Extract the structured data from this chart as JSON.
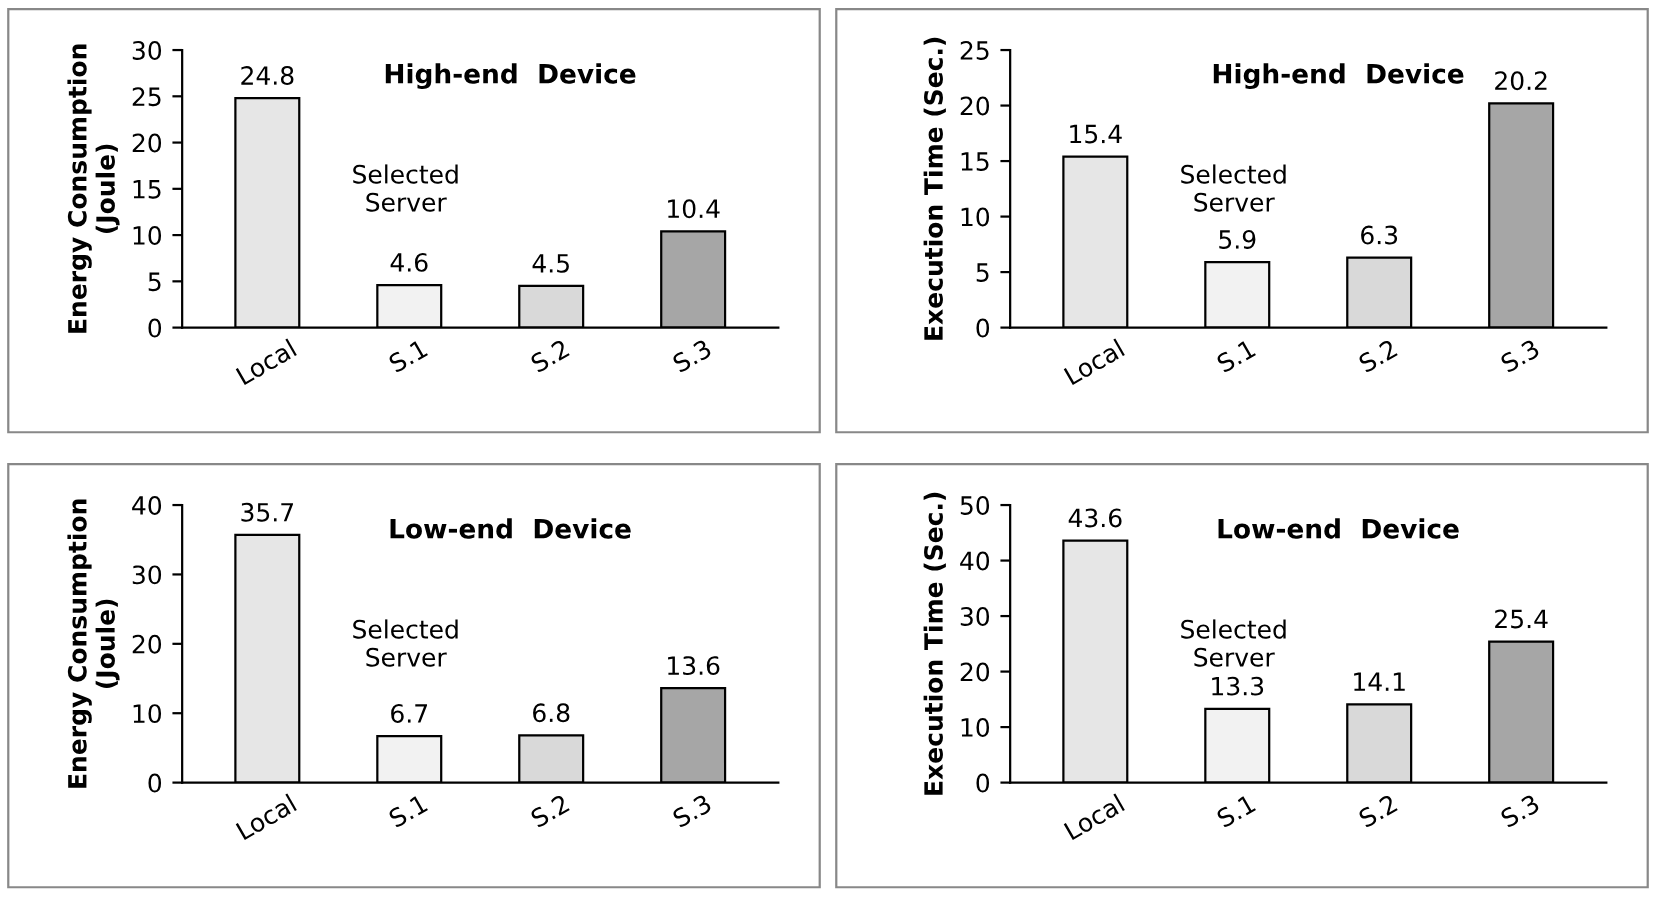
{
  "chart_data": [
    {
      "type": "bar",
      "title": "High-end  Device",
      "ylabel": "Energy Consumption\n(Joule)",
      "categories": [
        "Local",
        "S.1",
        "S.2",
        "S.3"
      ],
      "values": [
        24.8,
        4.6,
        4.5,
        10.4
      ],
      "colors": [
        "#e6e6e6",
        "#f2f2f2",
        "#d9d9d9",
        "#a6a6a6"
      ],
      "ylim": [
        0,
        30
      ],
      "yticks": [
        0,
        5,
        10,
        15,
        20,
        25,
        30
      ],
      "data_labels": true,
      "grid": false,
      "annotations": [
        "Selected\nServer"
      ]
    },
    {
      "type": "bar",
      "title": "High-end  Device",
      "ylabel": "Execution Time (Sec.)",
      "categories": [
        "Local",
        "S.1",
        "S.2",
        "S.3"
      ],
      "values": [
        15.4,
        5.9,
        6.3,
        20.2
      ],
      "colors": [
        "#e6e6e6",
        "#f2f2f2",
        "#d9d9d9",
        "#a6a6a6"
      ],
      "ylim": [
        0,
        25
      ],
      "yticks": [
        0,
        5,
        10,
        15,
        20,
        25
      ],
      "data_labels": true,
      "grid": false,
      "annotations": [
        "Selected\nServer"
      ]
    },
    {
      "type": "bar",
      "title": "Low-end  Device",
      "ylabel": "Energy Consumption\n(Joule)",
      "categories": [
        "Local",
        "S.1",
        "S.2",
        "S.3"
      ],
      "values": [
        35.7,
        6.7,
        6.8,
        13.6
      ],
      "colors": [
        "#e6e6e6",
        "#f2f2f2",
        "#d9d9d9",
        "#a6a6a6"
      ],
      "ylim": [
        0,
        40
      ],
      "yticks": [
        0,
        10,
        20,
        30,
        40
      ],
      "data_labels": true,
      "grid": false,
      "annotations": [
        "Selected\nServer"
      ]
    },
    {
      "type": "bar",
      "title": "Low-end  Device",
      "ylabel": "Execution Time (Sec.)",
      "categories": [
        "Local",
        "S.1",
        "S.2",
        "S.3"
      ],
      "values": [
        43.6,
        13.3,
        14.1,
        25.4
      ],
      "colors": [
        "#e6e6e6",
        "#f2f2f2",
        "#d9d9d9",
        "#a6a6a6"
      ],
      "ylim": [
        0,
        50
      ],
      "yticks": [
        0,
        10,
        20,
        30,
        40,
        50
      ],
      "data_labels": true,
      "grid": false,
      "annotations": [
        "Selected\nServer"
      ]
    }
  ]
}
